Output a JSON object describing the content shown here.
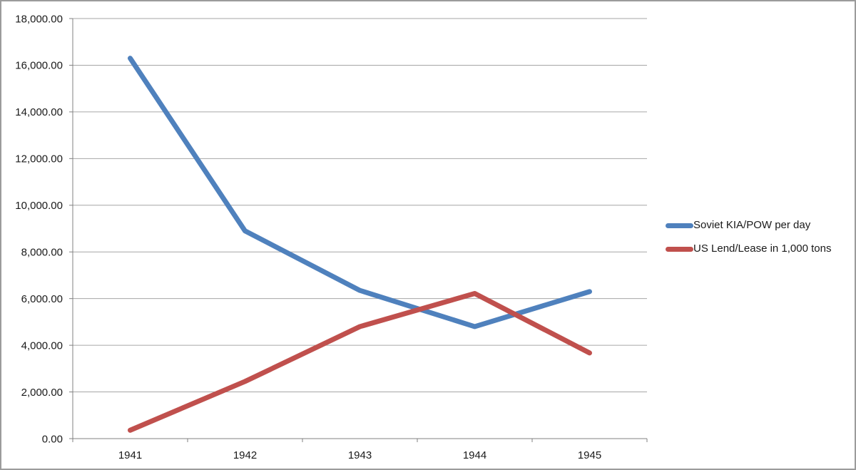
{
  "figure": {
    "background_color": "#FFFFFF",
    "border_color": "#9B9B9B"
  },
  "chart_data": {
    "type": "line",
    "title": "",
    "xlabel": "",
    "ylabel": "",
    "categories": [
      "1941",
      "1942",
      "1943",
      "1944",
      "1945"
    ],
    "series": [
      {
        "name": "Soviet KIA/POW per day",
        "color": "#4F81BD",
        "values": [
          16300,
          8900,
          6350,
          4800,
          6300
        ]
      },
      {
        "name": "US Lend/Lease in 1,000 tons",
        "color": "#C0504D",
        "values": [
          360,
          2450,
          4800,
          6220,
          3670
        ]
      }
    ],
    "ylim": [
      0,
      18000
    ],
    "y_tick_step": 2000,
    "y_tick_labels": [
      "0.00",
      "2,000.00",
      "4,000.00",
      "6,000.00",
      "8,000.00",
      "10,000.00",
      "12,000.00",
      "14,000.00",
      "16,000.00",
      "18,000.00"
    ],
    "grid": true,
    "legend_position": "right",
    "gridline_color": "#A6A6A6",
    "axis_color": "#808080",
    "text_color": "#1A1A1A"
  }
}
